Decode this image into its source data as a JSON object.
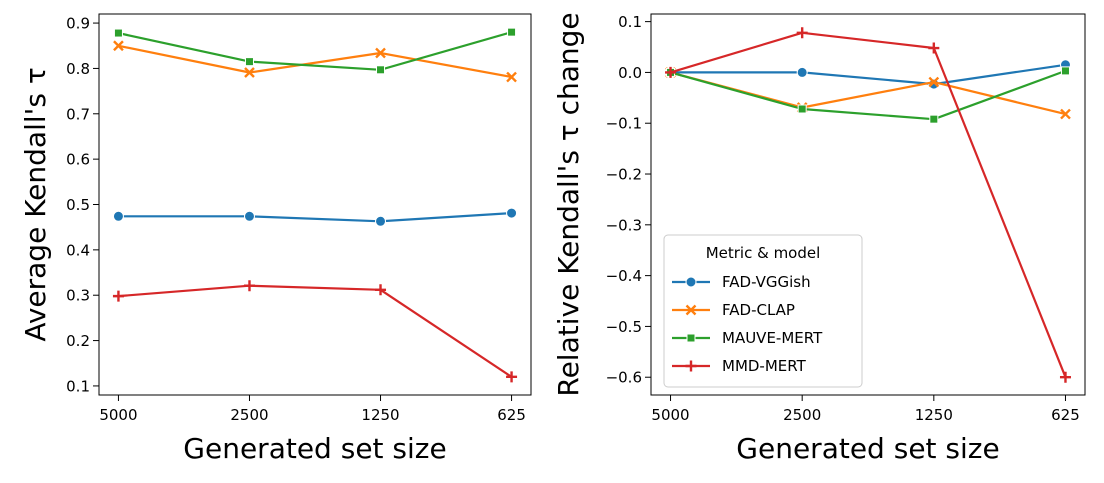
{
  "chart_data": [
    {
      "type": "line",
      "title": "",
      "xlabel": "Generated set size",
      "ylabel": "Average Kendall's τ",
      "categories": [
        "5000",
        "2500",
        "1250",
        "625"
      ],
      "ylim": [
        0.08,
        0.92
      ],
      "yticks": [
        0.1,
        0.2,
        0.3,
        0.4,
        0.5,
        0.6,
        0.7,
        0.8,
        0.9
      ],
      "ytick_labels": [
        "0.1",
        "0.2",
        "0.3",
        "0.4",
        "0.5",
        "0.6",
        "0.7",
        "0.8",
        "0.9"
      ],
      "series": [
        {
          "name": "FAD-VGGish",
          "color": "#1f77b4",
          "marker": "circle",
          "values": [
            0.474,
            0.474,
            0.463,
            0.481
          ]
        },
        {
          "name": "FAD-CLAP",
          "color": "#ff7f0e",
          "marker": "x",
          "values": [
            0.85,
            0.791,
            0.834,
            0.781
          ]
        },
        {
          "name": "MAUVE-MERT",
          "color": "#2ca02c",
          "marker": "square",
          "values": [
            0.878,
            0.815,
            0.797,
            0.88
          ]
        },
        {
          "name": "MMD-MERT",
          "color": "#d62728",
          "marker": "plus",
          "values": [
            0.298,
            0.321,
            0.312,
            0.12
          ]
        }
      ]
    },
    {
      "type": "line",
      "title": "",
      "xlabel": "Generated set size",
      "ylabel": "Relative Kendall's τ change",
      "categories": [
        "5000",
        "2500",
        "1250",
        "625"
      ],
      "ylim": [
        -0.635,
        0.115
      ],
      "yticks": [
        0.1,
        0.0,
        -0.1,
        -0.2,
        -0.3,
        -0.4,
        -0.5,
        -0.6
      ],
      "ytick_labels": [
        "0.1",
        "0.0",
        "−0.1",
        "−0.2",
        "−0.3",
        "−0.4",
        "−0.5",
        "−0.6"
      ],
      "legend": {
        "title": "Metric & model",
        "placement": "lower-left"
      },
      "series": [
        {
          "name": "FAD-VGGish",
          "color": "#1f77b4",
          "marker": "circle",
          "values": [
            0.0,
            0.0,
            -0.023,
            0.015
          ]
        },
        {
          "name": "FAD-CLAP",
          "color": "#ff7f0e",
          "marker": "x",
          "values": [
            0.0,
            -0.069,
            -0.019,
            -0.082
          ]
        },
        {
          "name": "MAUVE-MERT",
          "color": "#2ca02c",
          "marker": "square",
          "values": [
            0.0,
            -0.072,
            -0.092,
            0.003
          ]
        },
        {
          "name": "MMD-MERT",
          "color": "#d62728",
          "marker": "plus",
          "values": [
            0.0,
            0.078,
            0.048,
            -0.6
          ]
        }
      ]
    }
  ]
}
